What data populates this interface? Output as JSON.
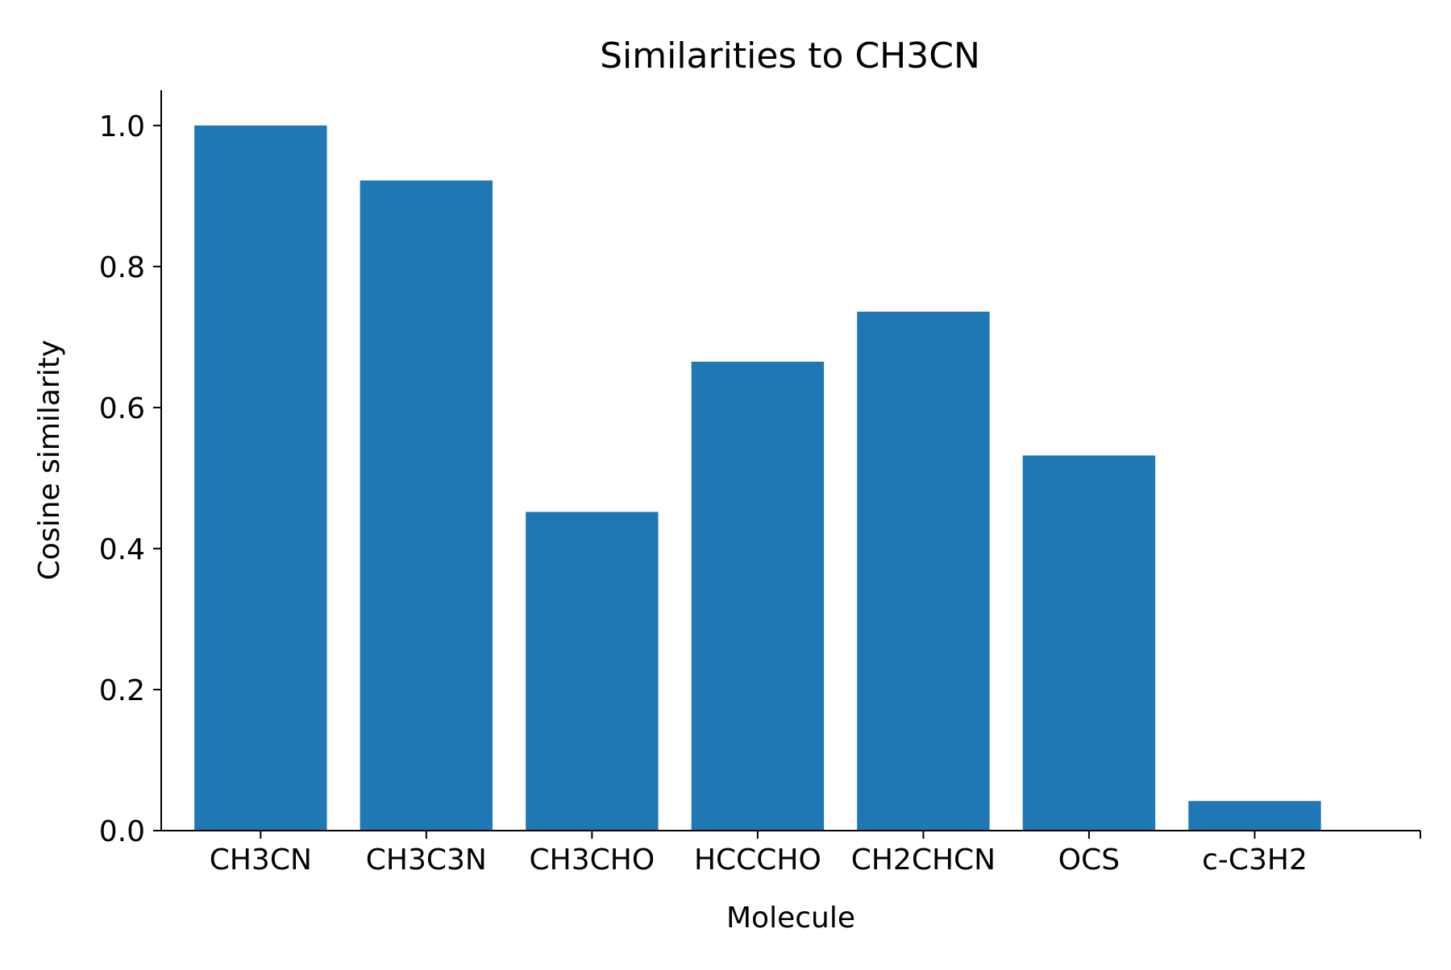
{
  "chart_data": {
    "type": "bar",
    "title": "Similarities to CH3CN",
    "xlabel": "Molecule",
    "ylabel": "Cosine similarity",
    "categories": [
      "CH3CN",
      "CH3C3N",
      "CH3CHO",
      "HCCCHO",
      "CH2CHCN",
      "OCS",
      "c-C3H2"
    ],
    "values": [
      1.0,
      0.922,
      0.452,
      0.665,
      0.736,
      0.532,
      0.042
    ],
    "ylim": [
      0,
      1.05
    ],
    "yticks": [
      0.0,
      0.2,
      0.4,
      0.6,
      0.8,
      1.0
    ],
    "ytick_labels": [
      "0.0",
      "0.2",
      "0.4",
      "0.6",
      "0.8",
      "1.0"
    ],
    "bar_color": "#1f77b4",
    "grid": false,
    "legend": "none"
  }
}
